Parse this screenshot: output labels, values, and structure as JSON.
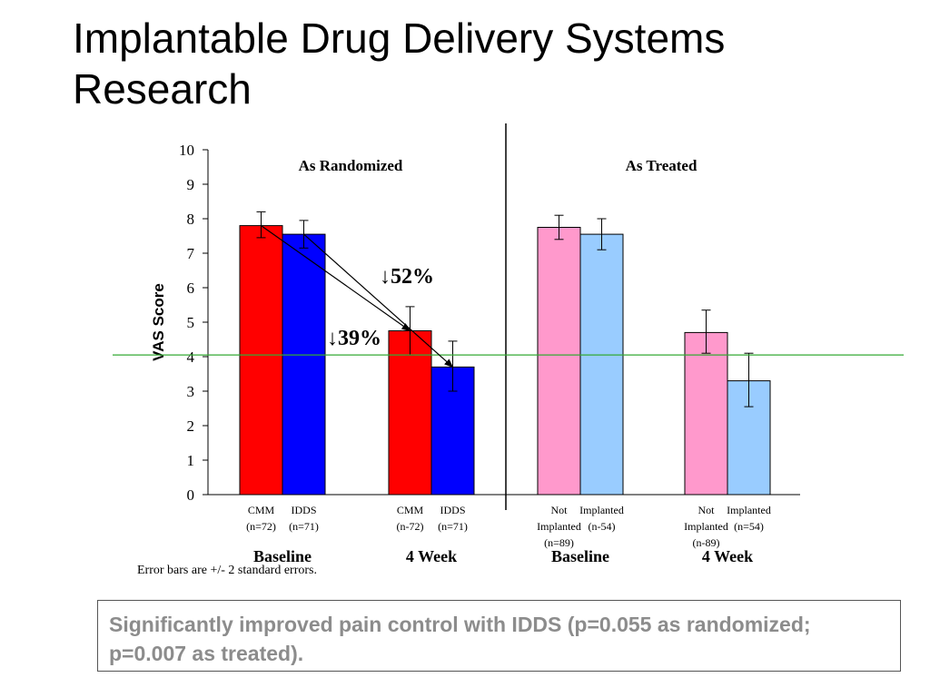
{
  "slide": {
    "title_line1": "Implantable Drug Delivery Systems",
    "title_line2": "Research",
    "note": "Error bars are +/- 2 standard errors.",
    "callout": "Significantly improved pain control with IDDS (p=0.055 as randomized; p=0.007 as treated)."
  },
  "chart_data": {
    "type": "bar",
    "ylabel": "VAS Score",
    "ylim": [
      0,
      10
    ],
    "yticks": [
      0,
      1,
      2,
      3,
      4,
      5,
      6,
      7,
      8,
      9,
      10
    ],
    "reference_line": 4.05,
    "sections": [
      {
        "title": "As Randomized"
      },
      {
        "title": "As Treated"
      }
    ],
    "groups": [
      {
        "label": "Baseline",
        "section": 0,
        "bars": [
          {
            "label_lines": [
              "CMM",
              "(n=72)"
            ],
            "value": 7.8,
            "err_low": 7.45,
            "err_high": 8.2,
            "color": "#ff0000"
          },
          {
            "label_lines": [
              "IDDS",
              "(n=71)"
            ],
            "value": 7.55,
            "err_low": 7.15,
            "err_high": 7.95,
            "color": "#0000ff"
          }
        ]
      },
      {
        "label": "4 Week",
        "section": 0,
        "bars": [
          {
            "label_lines": [
              "CMM",
              "(n-72)"
            ],
            "value": 4.75,
            "err_low": 4.05,
            "err_high": 5.45,
            "color": "#ff0000"
          },
          {
            "label_lines": [
              "IDDS",
              "(n=71)"
            ],
            "value": 3.7,
            "err_low": 3.0,
            "err_high": 4.45,
            "color": "#0000ff"
          }
        ]
      },
      {
        "label": "Baseline",
        "section": 1,
        "bars": [
          {
            "label_lines": [
              "Not",
              "Implanted",
              "(n=89)"
            ],
            "value": 7.75,
            "err_low": 7.4,
            "err_high": 8.1,
            "color": "#ff99cc"
          },
          {
            "label_lines": [
              "Implanted",
              "(n-54)"
            ],
            "value": 7.55,
            "err_low": 7.1,
            "err_high": 8.0,
            "color": "#99ccff"
          }
        ]
      },
      {
        "label": "4 Week",
        "section": 1,
        "bars": [
          {
            "label_lines": [
              "Not",
              "Implanted",
              "(n-89)"
            ],
            "value": 4.7,
            "err_low": 4.1,
            "err_high": 5.35,
            "color": "#ff99cc"
          },
          {
            "label_lines": [
              "Implanted",
              "(n=54)"
            ],
            "value": 3.3,
            "err_low": 2.55,
            "err_high": 4.1,
            "color": "#99ccff"
          }
        ]
      }
    ],
    "annotations": [
      {
        "text": "↓52%",
        "from": [
          0,
          1
        ],
        "to": [
          1,
          1
        ]
      },
      {
        "text": "↓39%",
        "from": [
          0,
          0
        ],
        "to": [
          1,
          0
        ]
      }
    ]
  }
}
